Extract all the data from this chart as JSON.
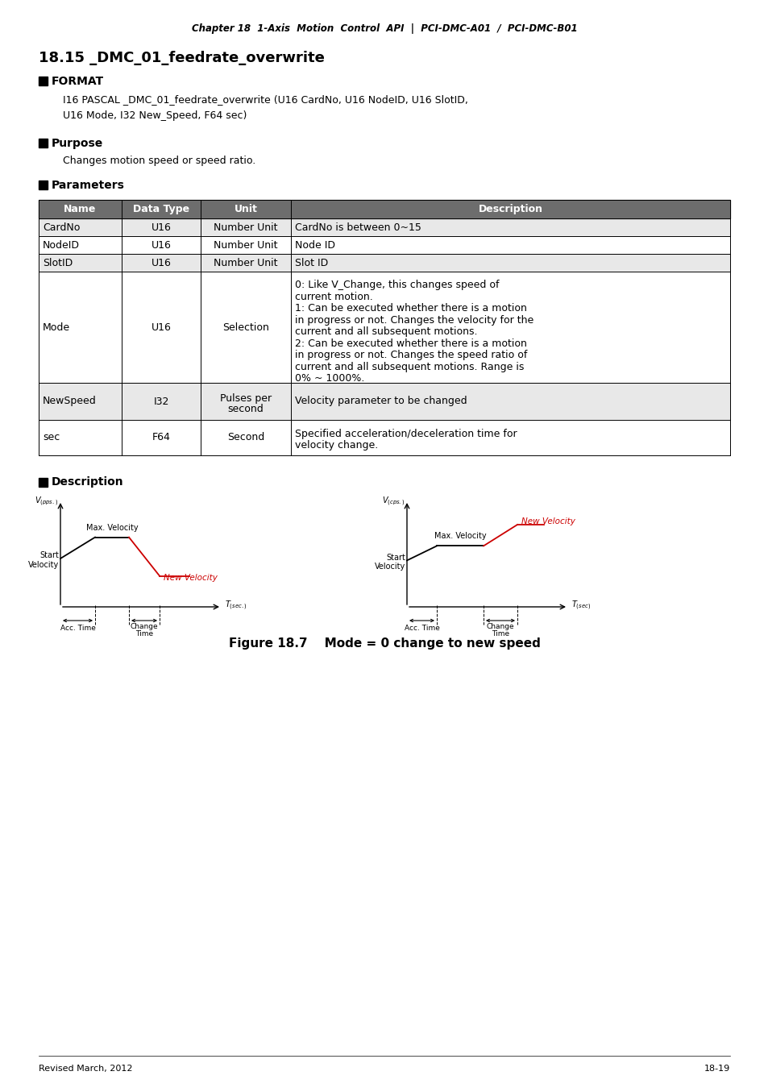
{
  "page_title": "Chapter 18  1-Axis  Motion  Control  API  |  PCI-DMC-A01  /  PCI-DMC-B01",
  "section_title": "18.15 _DMC_01_feedrate_overwrite",
  "format_label": "FORMAT",
  "format_text1": "I16 PASCAL _DMC_01_feedrate_overwrite (U16 CardNo, U16 NodeID, U16 SlotID,",
  "format_text2": "U16 Mode, I32 New_Speed, F64 sec)",
  "purpose_label": "Purpose",
  "purpose_text": "Changes motion speed or speed ratio.",
  "parameters_label": "Parameters",
  "table_headers": [
    "Name",
    "Data Type",
    "Unit",
    "Description"
  ],
  "table_rows": [
    [
      "CardNo",
      "U16",
      "Number Unit",
      "CardNo is between 0~15"
    ],
    [
      "NodeID",
      "U16",
      "Number Unit",
      "Node ID"
    ],
    [
      "SlotID",
      "U16",
      "Number Unit",
      "Slot ID"
    ],
    [
      "Mode",
      "U16",
      "Selection",
      "0: Like V_Change, this changes speed of current motion."
    ],
    [
      "NewSpeed",
      "I32",
      "Pulses per second",
      "Velocity parameter to be changed"
    ],
    [
      "sec",
      "F64",
      "Second",
      "Specified acceleration/deceleration time for velocity change."
    ]
  ],
  "description_label": "Description",
  "figure_caption": "Figure 18.7    Mode = 0 change to new speed",
  "footer_left": "Revised March, 2012",
  "footer_right": "18-19",
  "table_header_bg": "#6d6d6d",
  "table_header_fg": "#ffffff",
  "table_row_bg_even": "#e8e8e8",
  "table_row_bg_odd": "#ffffff",
  "black": "#000000",
  "red": "#cc0000"
}
